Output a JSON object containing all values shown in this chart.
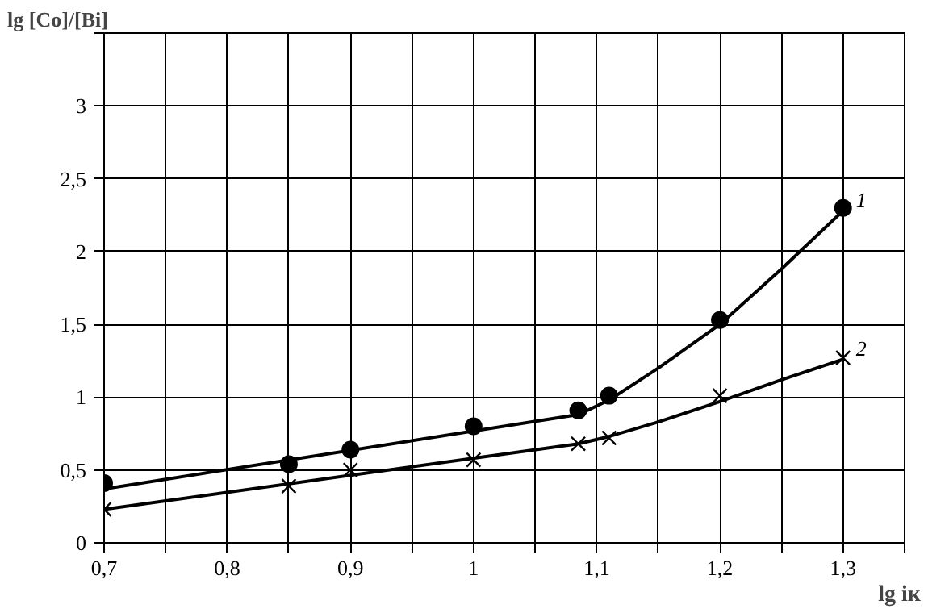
{
  "chart_data": {
    "type": "scatter",
    "xlabel": "lg iк",
    "ylabel": "lg [Co]/[Bi]",
    "xlim": [
      0.7,
      1.35
    ],
    "ylim": [
      0,
      3.5
    ],
    "xticks": [
      {
        "value": 0.7,
        "label": "0,7"
      },
      {
        "value": 0.75,
        "label": null
      },
      {
        "value": 0.8,
        "label": "0,8"
      },
      {
        "value": 0.85,
        "label": null
      },
      {
        "value": 0.9,
        "label": "0,9"
      },
      {
        "value": 0.95,
        "label": null
      },
      {
        "value": 1,
        "label": "1"
      },
      {
        "value": 1.05,
        "label": null
      },
      {
        "value": 1.1,
        "label": "1,1"
      },
      {
        "value": 1.15,
        "label": null
      },
      {
        "value": 1.2,
        "label": "1,2"
      },
      {
        "value": 1.25,
        "label": null
      },
      {
        "value": 1.3,
        "label": "1,3"
      },
      {
        "value": 1.35,
        "label": null
      }
    ],
    "yticks": [
      0,
      {
        "value": 0.5,
        "label": "0,5"
      },
      1,
      {
        "value": 1.5,
        "label": "1,5"
      },
      2,
      {
        "value": 2.5,
        "label": "2,5"
      },
      3,
      {
        "value": 3.5,
        "label": null
      }
    ],
    "grid": true,
    "series": [
      {
        "marker": "circle",
        "color": "#000000",
        "x": [
          0.7,
          0.85,
          0.9,
          1.0,
          1.085,
          1.11,
          1.2,
          1.3
        ],
        "values": [
          0.41,
          0.54,
          0.64,
          0.8,
          0.91,
          1.01,
          1.53,
          2.3
        ]
      },
      {
        "marker": "cross",
        "color": "#000000",
        "x": [
          0.7,
          0.85,
          0.9,
          1.0,
          1.085,
          1.11,
          1.2,
          1.3
        ],
        "values": [
          0.23,
          0.39,
          0.5,
          0.57,
          0.68,
          0.72,
          1.01,
          1.27
        ]
      },
      {
        "type": "line",
        "name": "1",
        "color": "#000000",
        "x": [
          0.7,
          1.085,
          1.11,
          1.15,
          1.2,
          1.25,
          1.3
        ],
        "values": [
          0.37,
          0.88,
          0.98,
          1.2,
          1.5,
          1.88,
          2.28
        ]
      },
      {
        "type": "line",
        "name": "2",
        "color": "#000000",
        "x": [
          0.7,
          1.085,
          1.11,
          1.15,
          1.2,
          1.25,
          1.3
        ],
        "values": [
          0.23,
          0.68,
          0.73,
          0.83,
          0.97,
          1.12,
          1.26
        ]
      }
    ]
  }
}
